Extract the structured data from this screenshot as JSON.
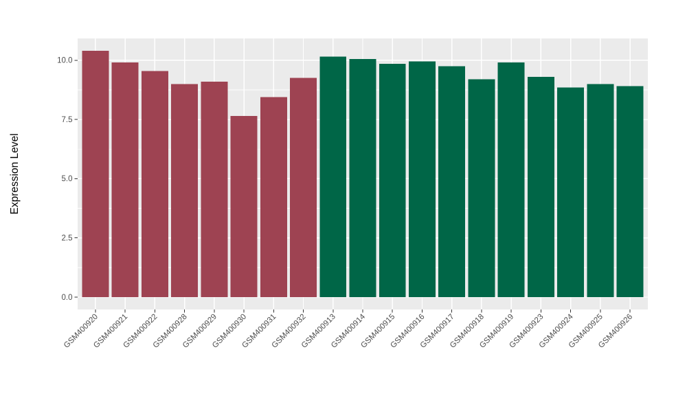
{
  "page": {
    "background": "#FFFFFF"
  },
  "chart_data": {
    "type": "bar",
    "title": "",
    "xlabel": "",
    "ylabel": "Expression Level",
    "categories": [
      "GSM400920",
      "GSM400921",
      "GSM400922",
      "GSM400928",
      "GSM400929",
      "GSM400930",
      "GSM400931",
      "GSM400932",
      "GSM400913",
      "GSM400914",
      "GSM400915",
      "GSM400916",
      "GSM400917",
      "GSM400918",
      "GSM400919",
      "GSM400923",
      "GSM400924",
      "GSM400925",
      "GSM400926"
    ],
    "values": [
      10.4,
      9.9,
      9.55,
      9.0,
      9.1,
      7.65,
      8.45,
      9.25,
      10.15,
      10.05,
      9.85,
      9.95,
      9.75,
      9.2,
      9.9,
      9.3,
      8.85,
      9.0,
      8.9
    ],
    "groups": [
      "maroon",
      "maroon",
      "maroon",
      "maroon",
      "maroon",
      "maroon",
      "maroon",
      "maroon",
      "green",
      "green",
      "green",
      "green",
      "green",
      "green",
      "green",
      "green",
      "green",
      "green",
      "green"
    ],
    "palette": {
      "maroon": "#9E4352",
      "green": "#006647"
    },
    "ylim": [
      0,
      10.4
    ],
    "yticks": [
      0,
      2.5,
      5,
      7.5,
      10
    ],
    "ytick_labels": [
      "0.0",
      "2.5",
      "5.0",
      "7.5",
      "10.0"
    ],
    "yminor": [
      1.25,
      3.75,
      6.25,
      8.75
    ],
    "grid": true,
    "legend": "none",
    "style": {
      "panel_bg": "#EBEBEB",
      "grid_color": "#FFFFFF",
      "tick_text_color": "#4D4D4D",
      "axis_title_color": "#000000",
      "axis_tick_color": "#333333"
    }
  }
}
